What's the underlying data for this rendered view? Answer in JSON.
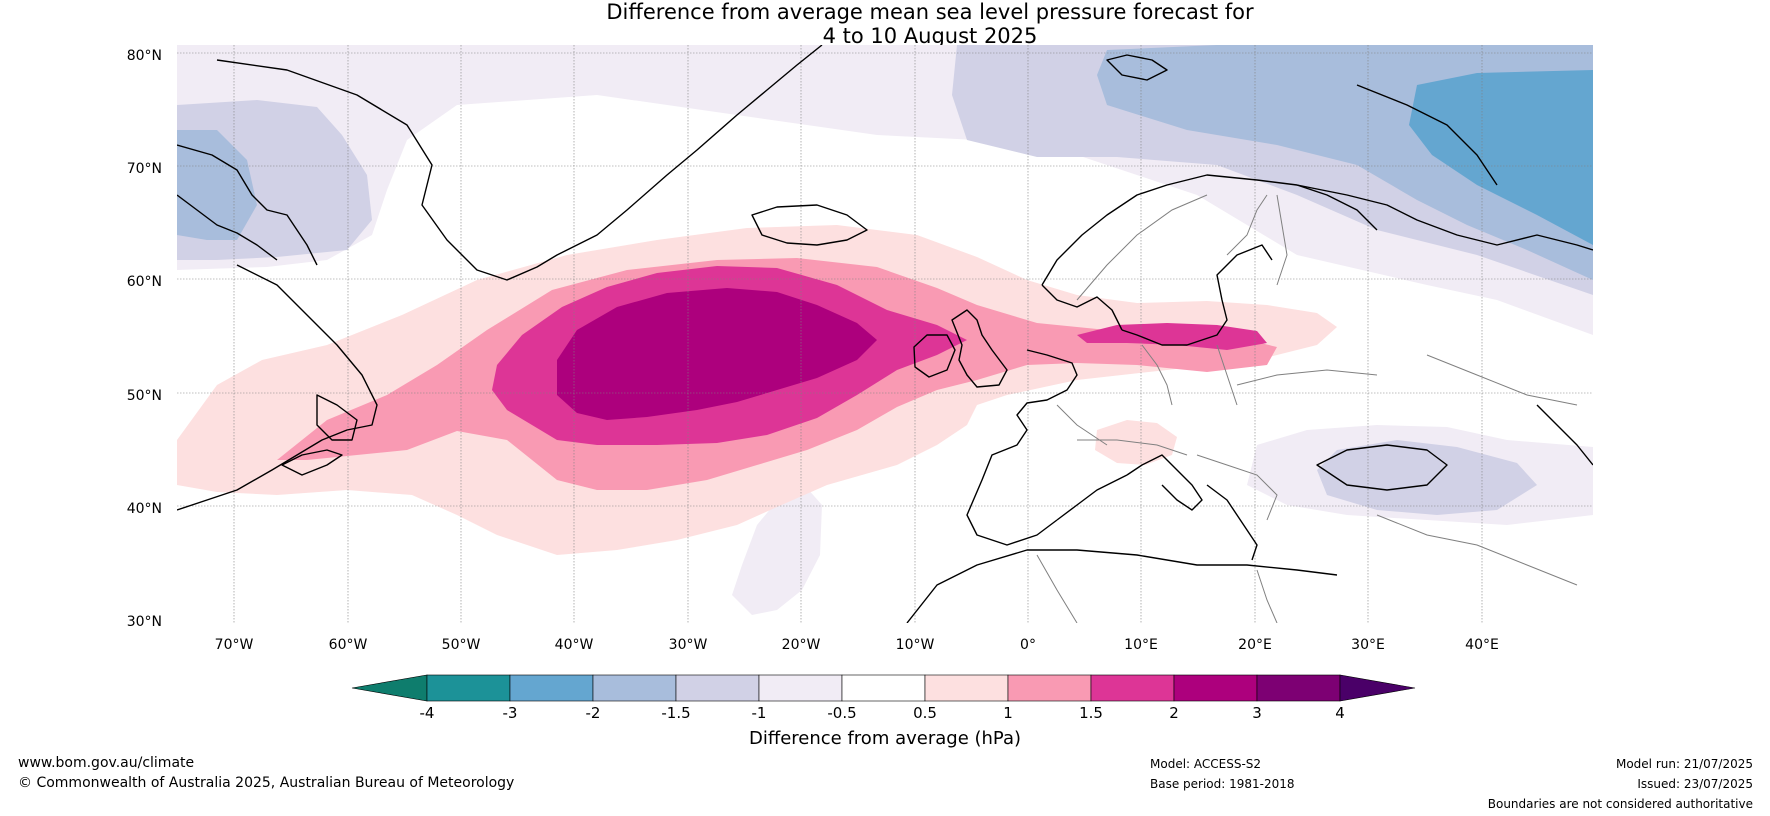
{
  "title": {
    "line1": "Difference from average mean sea level pressure forecast for",
    "line2": "4 to 10 August 2025"
  },
  "map": {
    "latitudes": [
      "80°N",
      "70°N",
      "60°N",
      "50°N",
      "40°N",
      "30°N"
    ],
    "longitudes": [
      "70°W",
      "60°W",
      "50°W",
      "40°W",
      "30°W",
      "20°W",
      "10°W",
      "0°",
      "10°E",
      "20°E",
      "30°E",
      "40°E"
    ],
    "extent": {
      "lon": [
        -75,
        50
      ],
      "lat": [
        30,
        81
      ]
    },
    "feature": "positive anomaly centred near 50°N 25°W extending over the British Isles; negative anomaly over Barents Sea"
  },
  "legend": {
    "title": "Difference from average (hPa)",
    "ticks": [
      "-4",
      "-3",
      "-2",
      "-1.5",
      "-1",
      "-0.5",
      "0.5",
      "1",
      "1.5",
      "2",
      "3",
      "4"
    ],
    "colors": [
      "#0e7d6d",
      "#1c9298",
      "#64a6d0",
      "#a8bddc",
      "#d1d1e6",
      "#f1ecf5",
      "#ffffff",
      "#fde0e0",
      "#f99ab3",
      "#dd3596",
      "#ad007d",
      "#7d0073",
      "#4a0068"
    ]
  },
  "footer": {
    "website": "www.bom.gov.au/climate",
    "copyright": "© Commonwealth of Australia 2025, Australian Bureau of Meteorology",
    "model": "Model: ACCESS-S2",
    "base_period": "Base period: 1981-2018",
    "model_run": "Model run: 21/07/2025",
    "issued": "Issued: 23/07/2025",
    "disclaimer": "Boundaries are not considered authoritative"
  }
}
